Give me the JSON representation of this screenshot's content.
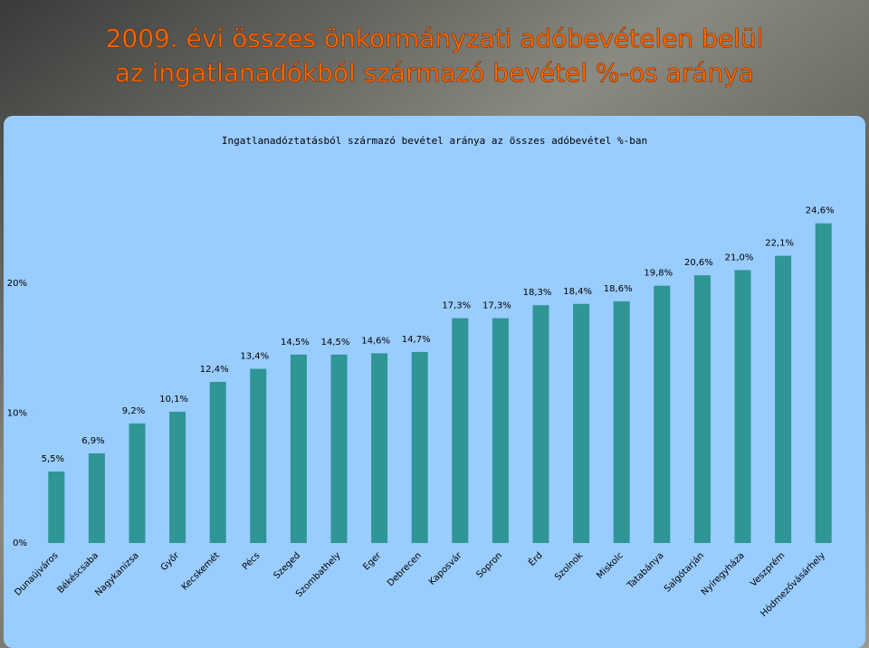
{
  "chart_data": {
    "type": "bar",
    "title": [
      "2009. évi összes önkormányzati adóbevételen belül",
      "az ingatlanadókból származó bevétel %-os aránya"
    ],
    "subtitle": "Ingatlanadóztatásból származó bevétel aránya az összes adóbevétel %-ban",
    "categories": [
      "Dunaújváros",
      "Békéscsaba",
      "Nagykanizsa",
      "Győr",
      "Kecskemét",
      "Pécs",
      "Szeged",
      "Szombathely",
      "Eger",
      "Debrecen",
      "Kaposvár",
      "Sopron",
      "Érd",
      "Szolnok",
      "Miskolc",
      "Tatabánya",
      "Salgótarján",
      "Nyíregyháza",
      "Veszprém",
      "Hódmezővásárhely"
    ],
    "values": [
      5.5,
      6.9,
      9.2,
      10.1,
      12.4,
      13.4,
      14.5,
      14.5,
      14.6,
      14.7,
      17.3,
      17.3,
      18.3,
      18.4,
      18.6,
      19.8,
      20.6,
      21.0,
      22.1,
      24.6
    ],
    "value_labels": [
      "5,5%",
      "6,9%",
      "9,2%",
      "10,1%",
      "12,4%",
      "13,4%",
      "14,5%",
      "14,5%",
      "14,6%",
      "14,7%",
      "17,3%",
      "17,3%",
      "18,3%",
      "18,4%",
      "18,6%",
      "19,8%",
      "20,6%",
      "21,0%",
      "22,1%",
      "24,6%"
    ],
    "color": "#2f9595",
    "ylim": [
      0,
      25
    ],
    "yticks": [
      {
        "value": 0,
        "label": "0%"
      },
      {
        "value": 10,
        "label": "10%"
      },
      {
        "value": 20,
        "label": "20%"
      }
    ],
    "grid": false
  }
}
